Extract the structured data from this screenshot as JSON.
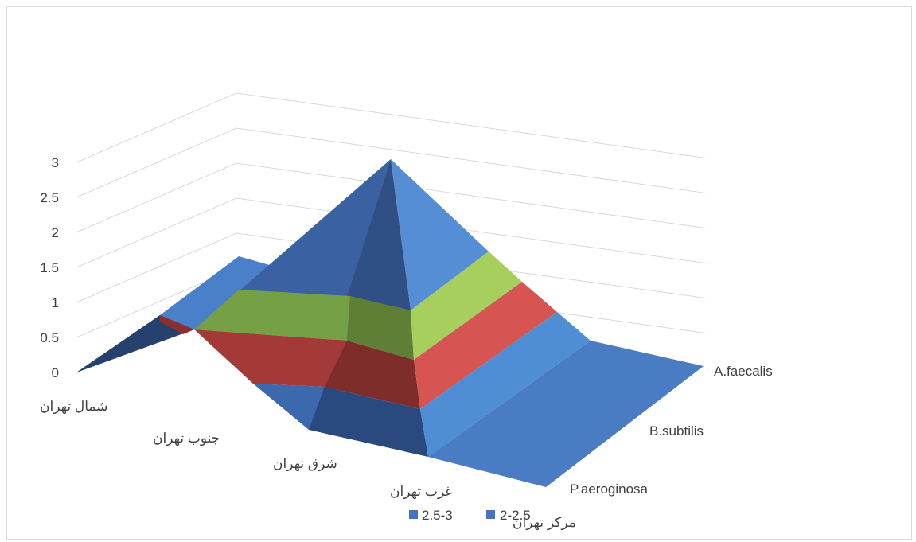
{
  "chart_data": {
    "type": "surface",
    "y_ticks": [
      "0",
      "0.5",
      "1",
      "1.5",
      "2",
      "2.5",
      "3"
    ],
    "ylim": [
      0,
      3
    ],
    "categories": [
      "شمال تهران",
      "جنوب تهران",
      "شرق تهران",
      "غرب تهران",
      "مرکز تهران"
    ],
    "series": [
      {
        "name": "A.faecalis",
        "values": [
          0,
          0,
          0,
          0,
          0
        ]
      },
      {
        "name": "B.subtilis",
        "values": [
          0,
          1,
          1.4,
          3,
          0
        ]
      },
      {
        "name": "P.aeroginosa",
        "values": [
          0,
          0.8,
          0,
          0,
          0
        ]
      }
    ],
    "legend": [
      {
        "label": "2.5-3",
        "color": "#4472c4"
      },
      {
        "label": "2-2.5",
        "color": "#4472c4"
      }
    ],
    "legend_position": "bottom",
    "grid": true,
    "band_colors": [
      "#4472c4",
      "#d9504f",
      "#9fcb5b",
      "#4f8ed4"
    ]
  }
}
